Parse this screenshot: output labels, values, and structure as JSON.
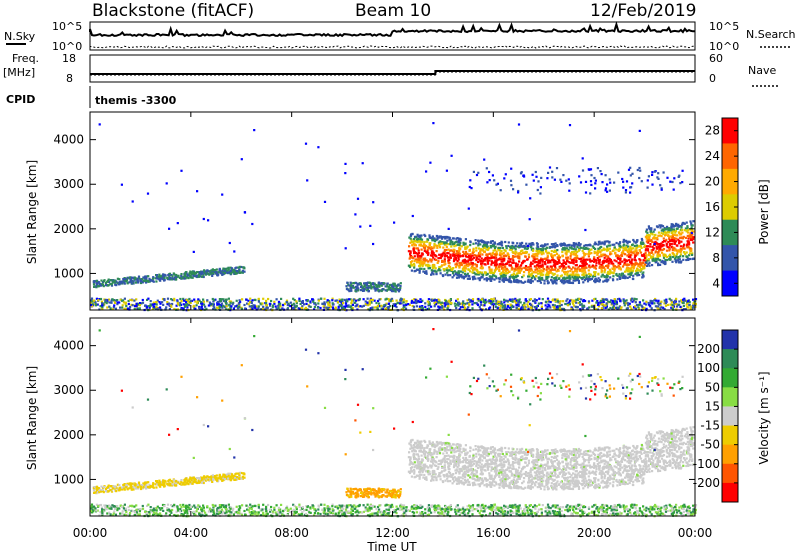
{
  "header": {
    "title": "Blackstone (fitACF)",
    "beam": "Beam 10",
    "date": "12/Feb/2019"
  },
  "top_panels": {
    "nsky_label": "N.Sky",
    "nsky_ticks": [
      "10^5",
      "10^0"
    ],
    "nsearch_label": "N.Search",
    "nsearch_ticks": [
      "10^5",
      "10^0"
    ],
    "freq_label": "Freq.",
    "freq_unit": "[MHz]",
    "freq_ticks": [
      "18",
      "8"
    ],
    "nave_label": "Nave",
    "nave_ticks": [
      "60",
      "0"
    ],
    "cpid_label": "CPID",
    "cpid_value": "themis -3300"
  },
  "chart_data": [
    {
      "type": "heatmap",
      "panel": "power",
      "ylabel": "Slant Range [km]",
      "y_ticks": [
        "1000",
        "2000",
        "3000",
        "4000"
      ],
      "ylim": [
        180,
        4620
      ],
      "colorbar_label": "Power [dB]",
      "colorbar_ticks": [
        "28",
        "24",
        "20",
        "16",
        "12",
        "8",
        "4"
      ],
      "colorbar_colors": [
        "#ff0000",
        "#ff6600",
        "#ffaa00",
        "#ddcc00",
        "#2e8b57",
        "#3355aa",
        "#0000ff"
      ]
    },
    {
      "type": "heatmap",
      "panel": "velocity",
      "ylabel": "Slant Range [km]",
      "y_ticks": [
        "1000",
        "2000",
        "3000",
        "4000"
      ],
      "ylim": [
        180,
        4620
      ],
      "colorbar_label": "Velocity [m s⁻¹]",
      "colorbar_ticks": [
        "200",
        "100",
        "50",
        "15",
        "-15",
        "-50",
        "-100",
        "-200"
      ],
      "colorbar_colors": [
        "#2233aa",
        "#2e8b57",
        "#33aa33",
        "#88dd44",
        "#cccccc",
        "#eecc00",
        "#ffa000",
        "#ff5500",
        "#ff0000"
      ]
    }
  ],
  "x_axis": {
    "label": "Time UT",
    "ticks": [
      "00:00",
      "04:00",
      "08:00",
      "12:00",
      "16:00",
      "20:00",
      "00:00"
    ]
  }
}
